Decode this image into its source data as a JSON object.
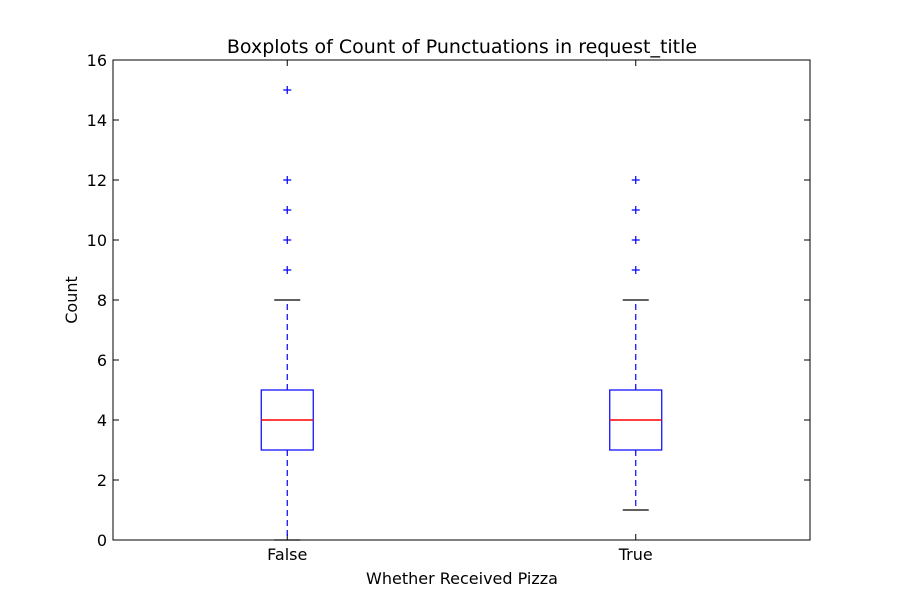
{
  "chart_data": {
    "type": "box",
    "title": "Boxplots of Count of Punctuations in request_title",
    "xlabel": "Whether Received Pizza",
    "ylabel": "Count",
    "ylim": [
      0,
      16
    ],
    "yticks": [
      0,
      2,
      4,
      6,
      8,
      10,
      12,
      14,
      16
    ],
    "categories": [
      "False",
      "True"
    ],
    "boxes": [
      {
        "category": "False",
        "whisker_low": 0,
        "q1": 3,
        "median": 4,
        "q3": 5,
        "whisker_high": 8,
        "outliers": [
          9,
          10,
          11,
          12,
          15
        ]
      },
      {
        "category": "True",
        "whisker_low": 1,
        "q1": 3,
        "median": 4,
        "q3": 5,
        "whisker_high": 8,
        "outliers": [
          9,
          10,
          11,
          12
        ]
      }
    ],
    "grid": false,
    "colors": {
      "box": "#0000ff",
      "median": "#ff0000",
      "whisker": "#0000ff",
      "cap": "#000000",
      "outlier": "#0000ff",
      "frame": "#000000"
    }
  }
}
